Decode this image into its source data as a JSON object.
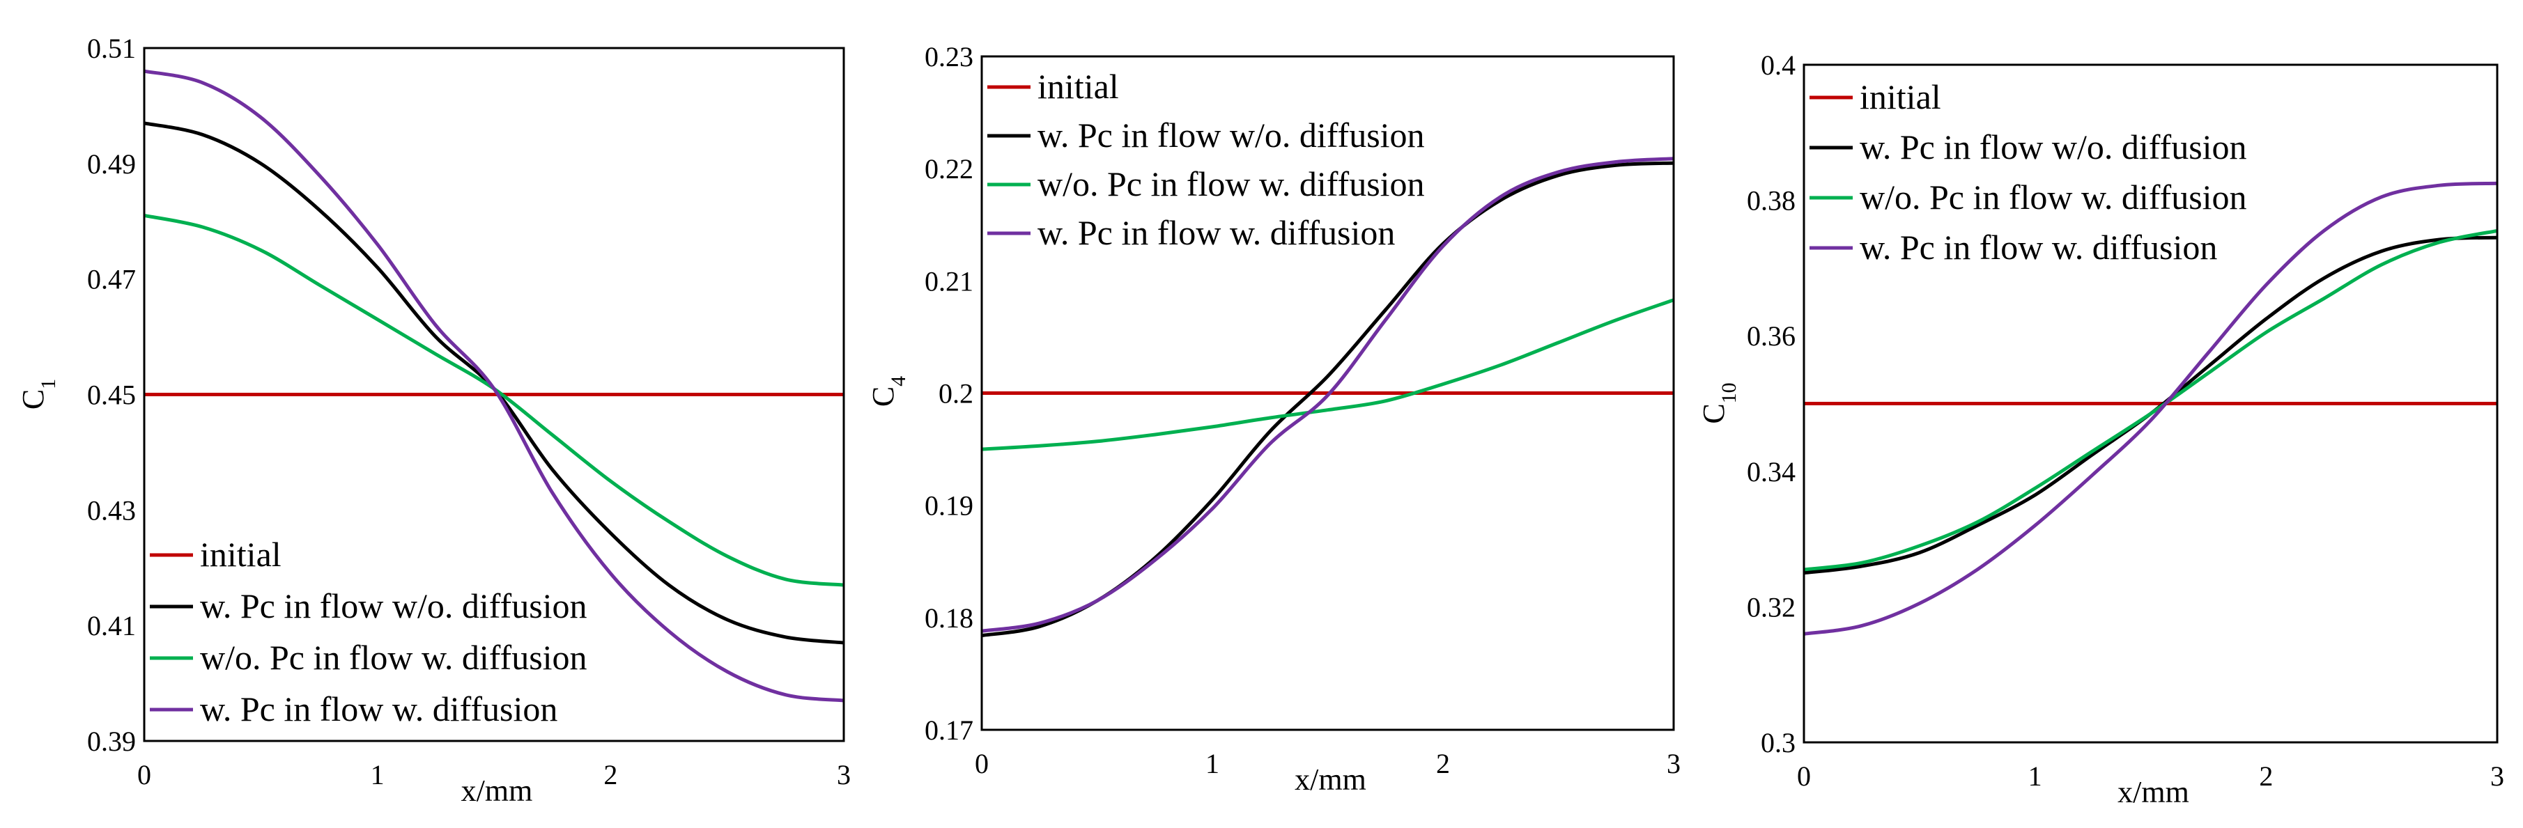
{
  "chart_data": [
    {
      "type": "line",
      "title": "",
      "xlabel": "x/mm",
      "ylabel": "C",
      "ylabel_sub": "1",
      "xlim": [
        0,
        3
      ],
      "ylim": [
        0.39,
        0.51
      ],
      "x_ticks": [
        0,
        1,
        2,
        3
      ],
      "x_tick_labels": [
        "0",
        "1",
        "2",
        "3"
      ],
      "y_ticks": [
        0.39,
        0.41,
        0.43,
        0.45,
        0.47,
        0.49,
        0.51
      ],
      "y_tick_labels": [
        "0.39",
        "0.41",
        "0.43",
        "0.45",
        "0.47",
        "0.49",
        "0.51"
      ],
      "legend_position": "bottom-left",
      "series": [
        {
          "name": "initial",
          "color": "#c00000",
          "x": [
            0,
            0.5,
            1,
            1.5,
            2,
            2.5,
            3
          ],
          "values": [
            0.45,
            0.45,
            0.45,
            0.45,
            0.45,
            0.45,
            0.45
          ]
        },
        {
          "name": "w. Pc in flow  w/o. diffusion",
          "color": "#000000",
          "x": [
            0,
            0.25,
            0.5,
            0.75,
            1,
            1.25,
            1.5,
            1.75,
            2,
            2.25,
            2.5,
            2.75,
            3
          ],
          "values": [
            0.497,
            0.495,
            0.49,
            0.482,
            0.472,
            0.46,
            0.451,
            0.437,
            0.426,
            0.417,
            0.411,
            0.408,
            0.407
          ]
        },
        {
          "name": "w/o. Pc in flow  w. diffusion",
          "color": "#00b050",
          "x": [
            0,
            0.25,
            0.5,
            0.75,
            1,
            1.25,
            1.5,
            1.75,
            2,
            2.25,
            2.5,
            2.75,
            3
          ],
          "values": [
            0.481,
            0.479,
            0.475,
            0.469,
            0.463,
            0.457,
            0.451,
            0.443,
            0.435,
            0.428,
            0.422,
            0.418,
            0.417
          ]
        },
        {
          "name": "w. Pc in flow  w. diffusion",
          "color": "#7030a0",
          "x": [
            0,
            0.25,
            0.5,
            0.75,
            1,
            1.25,
            1.5,
            1.75,
            2,
            2.25,
            2.5,
            2.75,
            3
          ],
          "values": [
            0.506,
            0.504,
            0.498,
            0.488,
            0.476,
            0.462,
            0.451,
            0.433,
            0.419,
            0.409,
            0.402,
            0.398,
            0.397
          ]
        }
      ]
    },
    {
      "type": "line",
      "title": "",
      "xlabel": "x/mm",
      "ylabel": "C",
      "ylabel_sub": "4",
      "xlim": [
        0,
        3
      ],
      "ylim": [
        0.17,
        0.23
      ],
      "x_ticks": [
        0,
        1,
        2,
        3
      ],
      "x_tick_labels": [
        "0",
        "1",
        "2",
        "3"
      ],
      "y_ticks": [
        0.17,
        0.18,
        0.19,
        0.2,
        0.21,
        0.22,
        0.23
      ],
      "y_tick_labels": [
        "0.17",
        "0.18",
        "0.19",
        "0.2",
        "0.21",
        "0.22",
        "0.23"
      ],
      "legend_position": "top-left",
      "series": [
        {
          "name": "initial",
          "color": "#c00000",
          "x": [
            0,
            0.5,
            1,
            1.5,
            2,
            2.5,
            3
          ],
          "values": [
            0.2,
            0.2,
            0.2,
            0.2,
            0.2,
            0.2,
            0.2
          ]
        },
        {
          "name": "w. Pc in flow  w/o. diffusion",
          "color": "#000000",
          "x": [
            0,
            0.25,
            0.5,
            0.75,
            1,
            1.25,
            1.5,
            1.75,
            2,
            2.25,
            2.5,
            2.75,
            3
          ],
          "values": [
            0.1784,
            0.1792,
            0.1815,
            0.1853,
            0.1905,
            0.1966,
            0.2015,
            0.2074,
            0.2133,
            0.2172,
            0.2194,
            0.2203,
            0.2205
          ]
        },
        {
          "name": "w/o. Pc in flow  w. diffusion",
          "color": "#00b050",
          "x": [
            0,
            0.25,
            0.5,
            0.75,
            1,
            1.25,
            1.5,
            1.75,
            2,
            2.25,
            2.5,
            2.75,
            3
          ],
          "values": [
            0.195,
            0.1953,
            0.1957,
            0.1963,
            0.197,
            0.1978,
            0.1985,
            0.1993,
            0.2008,
            0.2025,
            0.2045,
            0.2065,
            0.2083
          ]
        },
        {
          "name": "w. Pc in flow  w. diffusion",
          "color": "#7030a0",
          "x": [
            0,
            0.25,
            0.5,
            0.75,
            1,
            1.25,
            1.5,
            1.75,
            2,
            2.25,
            2.5,
            2.75,
            3
          ],
          "values": [
            0.1788,
            0.1795,
            0.1815,
            0.1851,
            0.1897,
            0.1955,
            0.1998,
            0.2065,
            0.2131,
            0.2175,
            0.2197,
            0.2206,
            0.2209
          ]
        }
      ]
    },
    {
      "type": "line",
      "title": "",
      "xlabel": "x/mm",
      "ylabel": "C",
      "ylabel_sub": "10",
      "xlim": [
        0,
        3
      ],
      "ylim": [
        0.3,
        0.4
      ],
      "x_ticks": [
        0,
        1,
        2,
        3
      ],
      "x_tick_labels": [
        "0",
        "1",
        "2",
        "3"
      ],
      "y_ticks": [
        0.3,
        0.32,
        0.34,
        0.36,
        0.38,
        0.4
      ],
      "y_tick_labels": [
        "0.3",
        "0.32",
        "0.34",
        "0.36",
        "0.38",
        "0.4"
      ],
      "legend_position": "top-left",
      "series": [
        {
          "name": "initial",
          "color": "#c00000",
          "x": [
            0,
            0.5,
            1,
            1.5,
            2,
            2.5,
            3
          ],
          "values": [
            0.35,
            0.35,
            0.35,
            0.35,
            0.35,
            0.35,
            0.35
          ]
        },
        {
          "name": "w. Pc in flow  w/o. diffusion",
          "color": "#000000",
          "x": [
            0,
            0.25,
            0.5,
            0.75,
            1,
            1.25,
            1.5,
            1.75,
            2,
            2.25,
            2.5,
            2.75,
            3
          ],
          "values": [
            0.325,
            0.326,
            0.328,
            0.332,
            0.3365,
            0.3425,
            0.3485,
            0.3555,
            0.3625,
            0.3685,
            0.3725,
            0.3742,
            0.3745
          ]
        },
        {
          "name": "w/o. Pc in flow  w. diffusion",
          "color": "#00b050",
          "x": [
            0,
            0.25,
            0.5,
            0.75,
            1,
            1.25,
            1.5,
            1.75,
            2,
            2.25,
            2.5,
            2.75,
            3
          ],
          "values": [
            0.3255,
            0.3265,
            0.329,
            0.3325,
            0.3375,
            0.343,
            0.3485,
            0.3545,
            0.3605,
            0.3655,
            0.3705,
            0.3738,
            0.3755
          ]
        },
        {
          "name": "w. Pc in flow  w. diffusion",
          "color": "#7030a0",
          "x": [
            0,
            0.25,
            0.5,
            0.75,
            1,
            1.25,
            1.5,
            1.75,
            2,
            2.25,
            2.5,
            2.75,
            3
          ],
          "values": [
            0.316,
            0.3172,
            0.3205,
            0.3255,
            0.332,
            0.3395,
            0.3475,
            0.3575,
            0.3675,
            0.3755,
            0.3805,
            0.3822,
            0.3825
          ]
        }
      ]
    }
  ]
}
